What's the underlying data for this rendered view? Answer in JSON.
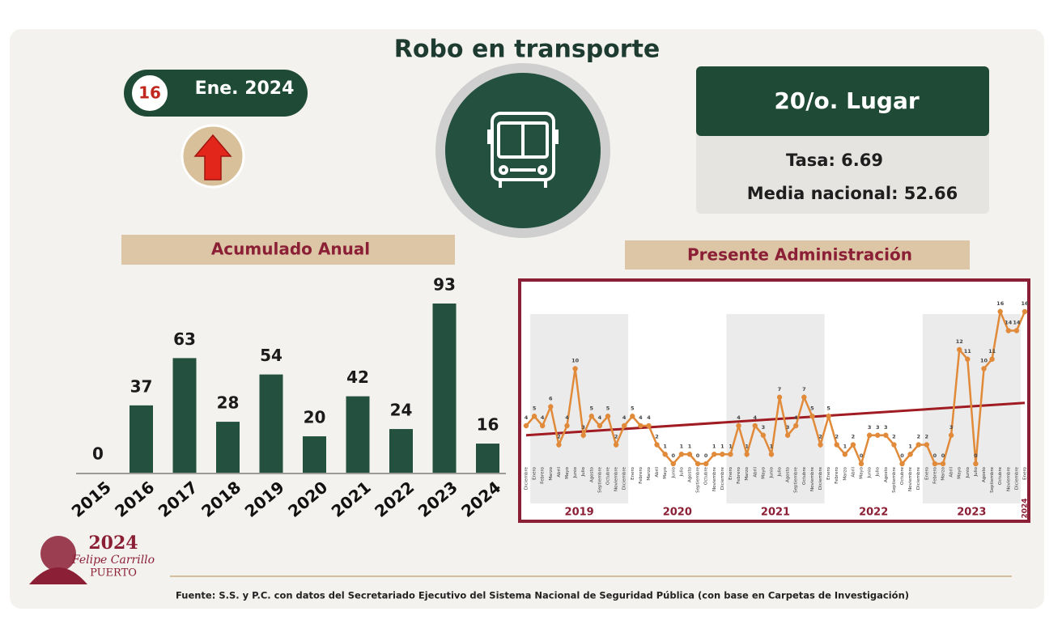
{
  "title": "Robo en transporte",
  "badge": {
    "rank": "16",
    "month": "Ene. 2024"
  },
  "ranking": {
    "place": "20/o. Lugar",
    "rate": "Tasa: 6.69",
    "national": "Media nacional: 52.66"
  },
  "logo": {
    "year": "2024",
    "name": "Felipe Carrillo",
    "surname": "PUERTO"
  },
  "source": "Fuente: S.S. y P.C. con datos del Secretariado Ejecutivo del Sistema Nacional de Seguridad Pública (con base en Carpetas de Investigación)",
  "chart_data": [
    {
      "type": "bar",
      "title": "Acumulado Anual",
      "categories": [
        "2015",
        "2016",
        "2017",
        "2018",
        "2019",
        "2020",
        "2021",
        "2022",
        "2023",
        "2024"
      ],
      "values": [
        0,
        37,
        63,
        28,
        54,
        20,
        42,
        24,
        93,
        16
      ],
      "color": "#23503f",
      "ylim": [
        0,
        93
      ]
    },
    {
      "type": "line",
      "title": "Presente Administración",
      "categories": [
        "Diciembre",
        "Enero",
        "Febrero",
        "Marzo",
        "Abril",
        "Mayo",
        "Junio",
        "Julio",
        "Agosto",
        "Septiembre",
        "Octubre",
        "Noviembre",
        "Diciembre",
        "Enero",
        "Febrero",
        "Marzo",
        "Abril",
        "Mayo",
        "Junio",
        "Julio",
        "Agosto",
        "Septiembre",
        "Octubre",
        "Noviembre",
        "Diciembre",
        "Enero",
        "Febrero",
        "Marzo",
        "Abril",
        "Mayo",
        "Junio",
        "Julio",
        "Agosto",
        "Septiembre",
        "Octubre",
        "Noviembre",
        "Diciembre",
        "Enero",
        "Febrero",
        "Marzo",
        "Abril",
        "Mayo",
        "Junio",
        "Julio",
        "Agosto",
        "Septiembre",
        "Octubre",
        "Noviembre",
        "Diciembre",
        "Enero",
        "Febrero",
        "Marzo",
        "Abril",
        "Mayo",
        "Junio",
        "Julio",
        "Agosto",
        "Septiembre",
        "Octubre",
        "Noviembre",
        "Diciembre",
        "Enero"
      ],
      "years": [
        "2019",
        "2020",
        "2021",
        "2022",
        "2023",
        "2024"
      ],
      "values": [
        4,
        5,
        4,
        6,
        2,
        4,
        10,
        3,
        5,
        4,
        5,
        2,
        4,
        5,
        4,
        4,
        2,
        1,
        0,
        1,
        1,
        0,
        0,
        1,
        1,
        1,
        4,
        1,
        4,
        3,
        1,
        7,
        3,
        4,
        7,
        5,
        2,
        5,
        2,
        1,
        2,
        0,
        3,
        3,
        3,
        2,
        0,
        1,
        2,
        2,
        0,
        0,
        3,
        12,
        11,
        0,
        10,
        11,
        16,
        14,
        14,
        16
      ],
      "color": "#e08a3a",
      "trend": [
        3,
        6.4
      ],
      "trend_color": "#a01c22",
      "ylim": [
        0,
        16
      ]
    }
  ]
}
